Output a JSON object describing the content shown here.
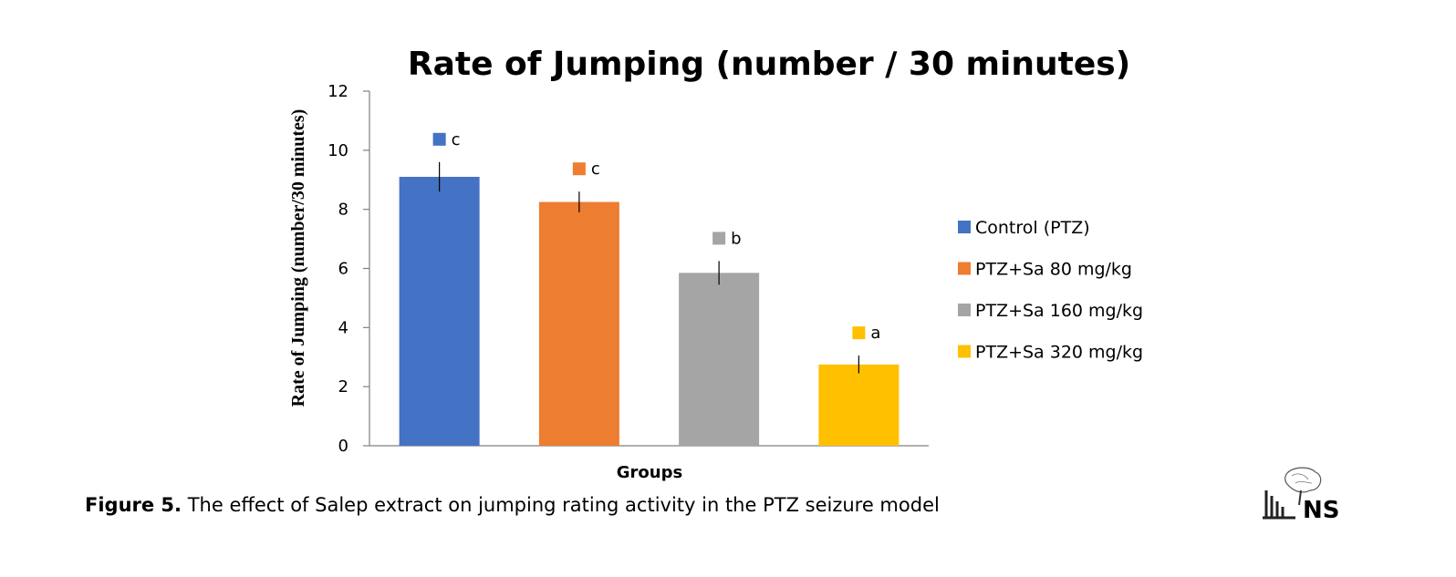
{
  "chart_data": {
    "type": "bar",
    "title": "Rate of Jumping (number / 30 minutes)",
    "xlabel": "Groups",
    "ylabel": "Rate of Jumping (number/30 minutes)",
    "ylim": [
      0,
      12
    ],
    "yticks": [
      0,
      2,
      4,
      6,
      8,
      10,
      12
    ],
    "grid": false,
    "legend_position": "right",
    "series": [
      {
        "name": "Control (PTZ)",
        "value": 9.1,
        "error": 0.5,
        "significance": "c",
        "color": "#4472C4"
      },
      {
        "name": "PTZ+Sa 80 mg/kg",
        "value": 8.25,
        "error": 0.35,
        "significance": "c",
        "color": "#ED7D31"
      },
      {
        "name": "PTZ+Sa 160 mg/kg",
        "value": 5.85,
        "error": 0.4,
        "significance": "b",
        "color": "#A5A5A5"
      },
      {
        "name": "PTZ+Sa 320 mg/kg",
        "value": 2.75,
        "error": 0.3,
        "significance": "a",
        "color": "#FFC000"
      }
    ]
  },
  "caption": {
    "label": "Figure 5.",
    "text": " The effect of Salep extract on jumping rating activity in the PTZ seizure model"
  },
  "logo": {
    "text": "NS",
    "icon": "brain-logo-icon"
  }
}
